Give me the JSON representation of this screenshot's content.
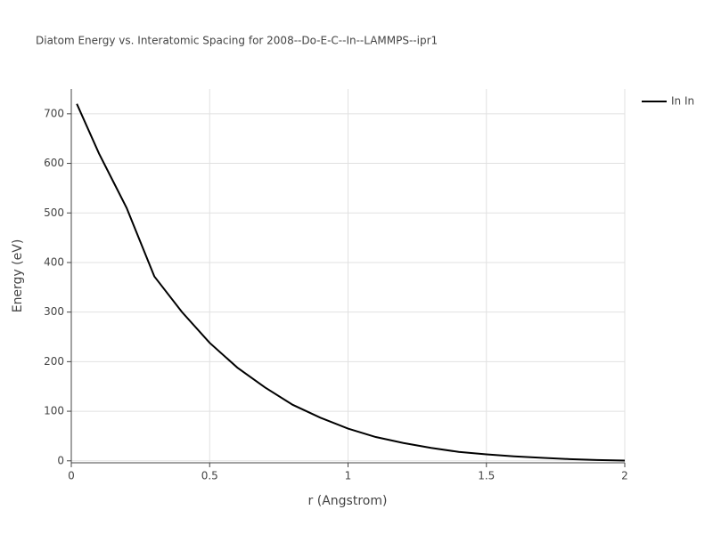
{
  "chart_data": {
    "type": "line",
    "title": "Diatom Energy vs. Interatomic Spacing for 2008--Do-E-C--In--LAMMPS--ipr1",
    "x_label": "r (Angstrom)",
    "y_label": "Energy (eV)",
    "x": [
      0.02,
      0.1,
      0.2,
      0.3,
      0.4,
      0.5,
      0.6,
      0.7,
      0.8,
      0.9,
      1.0,
      1.1,
      1.2,
      1.3,
      1.4,
      1.5,
      1.6,
      1.7,
      1.8,
      1.9,
      2.0
    ],
    "series": [
      {
        "name": "In In",
        "color": "#000000",
        "values": [
          720,
          620,
          510,
          372,
          300,
          238,
          188,
          148,
          113,
          87,
          65,
          48,
          36,
          26,
          18,
          13,
          9,
          6,
          3.5,
          1.5,
          0.5
        ]
      }
    ],
    "xlim": [
      0,
      2
    ],
    "xticks": [
      0,
      0.5,
      1,
      1.5,
      2
    ],
    "ylim": [
      -4,
      750
    ],
    "yticks": [
      0,
      100,
      200,
      300,
      400,
      500,
      600,
      700
    ],
    "grid": true,
    "legend": "right"
  }
}
